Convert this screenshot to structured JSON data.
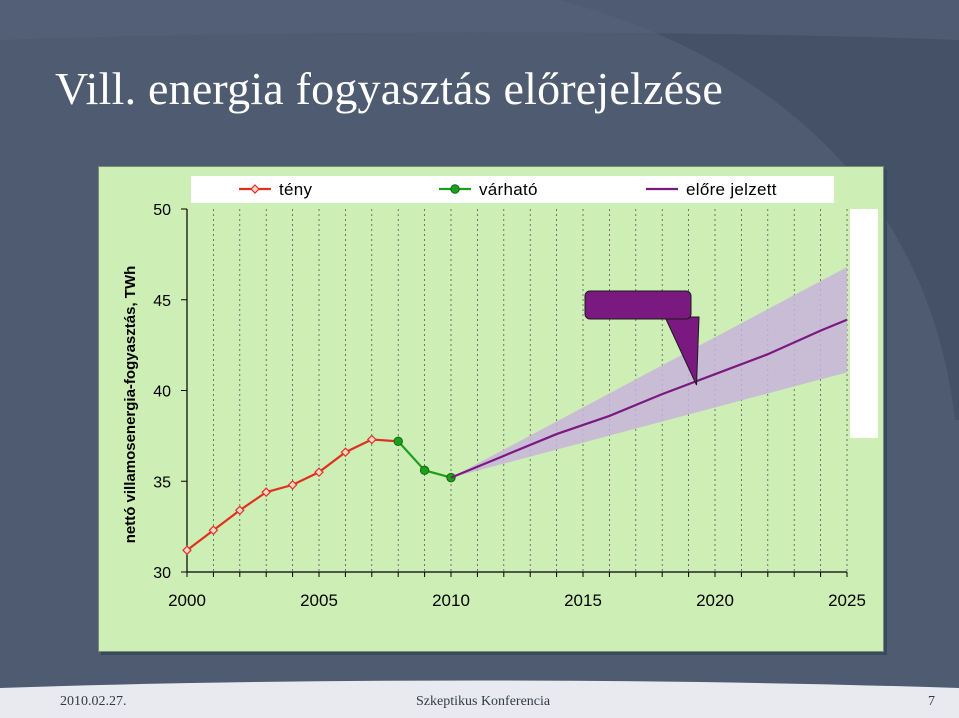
{
  "slide": {
    "title": "Vill. energia fogyasztás előrejelzése",
    "footer_date": "2010.02.27.",
    "footer_center": "Szkeptikus Konferencia",
    "footer_page": "7"
  },
  "colors": {
    "background": "#4e5b70",
    "plot_area": "#cdeeb4",
    "teny": "#e03020",
    "varhato": "#1e9e1e",
    "elore_jelzett": "#7a1a80",
    "band": "#c8b4dc",
    "callout": "#7a1a80"
  },
  "chart_data": {
    "type": "line",
    "title": "",
    "xlabel": "",
    "ylabel": "nettó villamosenergia-fogyasztás, TWh",
    "xlim": [
      2000,
      2025
    ],
    "ylim": [
      30,
      50
    ],
    "x_ticks": [
      "2000",
      "2005",
      "2010",
      "2015",
      "2020",
      "2025"
    ],
    "y_ticks": [
      "30",
      "35",
      "40",
      "45",
      "50"
    ],
    "grid": true,
    "legend_position": "top",
    "series": [
      {
        "name": "tény",
        "color": "#e03020",
        "marker": "diamond",
        "points": [
          [
            2000,
            31.2
          ],
          [
            2001,
            32.3
          ],
          [
            2002,
            33.4
          ],
          [
            2003,
            34.4
          ],
          [
            2004,
            34.8
          ],
          [
            2005,
            35.5
          ],
          [
            2006,
            36.6
          ],
          [
            2007,
            37.3
          ],
          [
            2008,
            37.2
          ]
        ]
      },
      {
        "name": "várható",
        "color": "#1e9e1e",
        "marker": "circle",
        "points": [
          [
            2008,
            37.2
          ],
          [
            2009,
            35.6
          ],
          [
            2010,
            35.2
          ]
        ]
      },
      {
        "name": "előre jelzett",
        "color": "#7a1a80",
        "marker": "none",
        "points": [
          [
            2010,
            35.2
          ],
          [
            2012,
            36.4
          ],
          [
            2014,
            37.6
          ],
          [
            2016,
            38.6
          ],
          [
            2018,
            39.8
          ],
          [
            2020,
            40.9
          ],
          [
            2022,
            42.0
          ],
          [
            2024,
            43.3
          ],
          [
            2025,
            43.9
          ]
        ]
      }
    ],
    "uncertainty_band": {
      "upper": [
        [
          2010,
          35.2
        ],
        [
          2025,
          46.8
        ]
      ],
      "lower": [
        [
          2010,
          35.2
        ],
        [
          2025,
          41.0
        ]
      ]
    },
    "annotations": [
      {
        "type": "callout",
        "text": "",
        "points_to": [
          2019.3,
          40.3
        ]
      }
    ]
  }
}
